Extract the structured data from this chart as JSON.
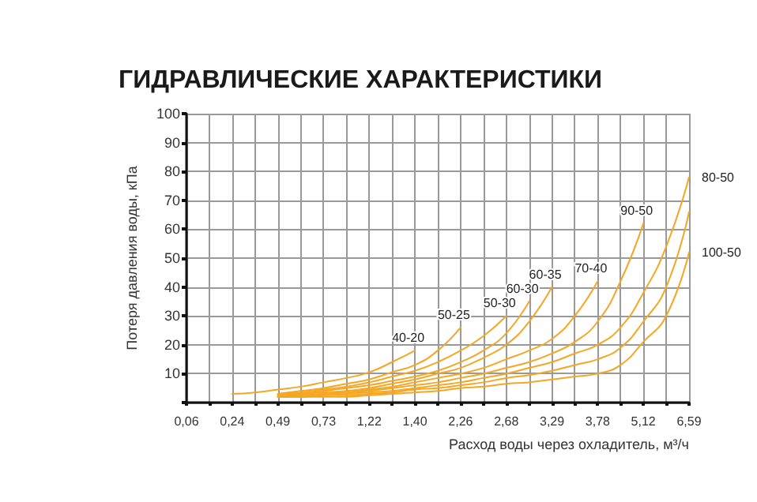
{
  "chart_data": {
    "type": "line",
    "title": "ГИДРАВЛИЧЕСКИЕ ХАРАКТЕРИСТИКИ",
    "xlabel": "Расход воды через охладитель, м³/ч",
    "ylabel": "Потеря давления воды, кПа",
    "categories": [
      "0,06",
      null,
      "0,24",
      null,
      "0,49",
      null,
      "0,73",
      null,
      "1,22",
      null,
      "1,40",
      null,
      "2,26",
      null,
      "2,68",
      null,
      "3,29",
      null,
      "3,78",
      null,
      "5,12",
      null,
      "6,59"
    ],
    "series": [
      {
        "name": "40-20",
        "color": "#f5a623",
        "values": [
          null,
          null,
          3,
          3.5,
          4.5,
          5.5,
          7,
          8.5,
          10.5,
          14,
          18,
          null,
          null,
          null,
          null,
          null,
          null,
          null,
          null,
          null,
          null,
          null,
          null
        ]
      },
      {
        "name": "50-25",
        "color": "#f5a623",
        "values": [
          null,
          null,
          null,
          null,
          3,
          4,
          5,
          6.5,
          8,
          10.5,
          13,
          18,
          26,
          null,
          null,
          null,
          null,
          null,
          null,
          null,
          null,
          null,
          null
        ]
      },
      {
        "name": "50-30",
        "color": "#f5a623",
        "values": [
          null,
          null,
          null,
          null,
          3,
          3.5,
          4.5,
          5.5,
          7,
          9,
          11,
          14,
          18,
          23,
          30,
          null,
          null,
          null,
          null,
          null,
          null,
          null,
          null
        ]
      },
      {
        "name": "60-30",
        "color": "#f5a623",
        "values": [
          null,
          null,
          null,
          null,
          2.5,
          3,
          4,
          5,
          6,
          7.5,
          9,
          11,
          14,
          18,
          24,
          35,
          null,
          null,
          null,
          null,
          null,
          null,
          null
        ]
      },
      {
        "name": "60-35",
        "color": "#f5a623",
        "values": [
          null,
          null,
          null,
          null,
          2.5,
          3,
          3.5,
          4,
          5,
          6.5,
          8,
          10,
          12,
          15.5,
          20,
          28,
          40,
          null,
          null,
          null,
          null,
          null,
          null
        ]
      },
      {
        "name": "70-40",
        "color": "#f5a623",
        "values": [
          null,
          null,
          null,
          null,
          2,
          2.5,
          3,
          3.5,
          4.5,
          5.5,
          7,
          8.5,
          10,
          12,
          15,
          18,
          22,
          30,
          42,
          null,
          null,
          null,
          null
        ]
      },
      {
        "name": "90-50",
        "color": "#f5a623",
        "values": [
          null,
          null,
          null,
          null,
          2,
          2.5,
          3,
          3.5,
          4,
          5,
          6,
          7,
          8.5,
          10,
          12,
          14,
          17,
          21,
          28,
          42,
          62,
          null,
          null
        ]
      },
      {
        "name": "80-50",
        "color": "#f5a623",
        "values": [
          null,
          null,
          null,
          null,
          2,
          2,
          2.5,
          3,
          3.5,
          4,
          5,
          6,
          7,
          8.5,
          10,
          12,
          14,
          17,
          20,
          26,
          38,
          54,
          78
        ]
      },
      {
        "color": "#f5a623",
        "values": [
          null,
          null,
          null,
          null,
          2,
          2,
          2.5,
          2.5,
          3,
          3.5,
          4.5,
          5,
          6,
          7,
          8.5,
          9.5,
          11,
          13,
          15,
          19,
          28,
          40,
          66
        ]
      },
      {
        "name": "100-50",
        "color": "#f5a623",
        "values": [
          null,
          null,
          null,
          null,
          2,
          2,
          2,
          2,
          2.5,
          3,
          3.5,
          4,
          5,
          5.5,
          6.5,
          7,
          8,
          9,
          10,
          13,
          21,
          30,
          52
        ]
      }
    ],
    "ylim": [
      0,
      100
    ],
    "yticks": [
      {
        "value": 0,
        "label": null
      },
      10,
      20,
      30,
      40,
      50,
      60,
      70,
      80,
      90,
      100
    ],
    "grid": true,
    "legend": false,
    "marker": "none",
    "line_style": "solid"
  }
}
